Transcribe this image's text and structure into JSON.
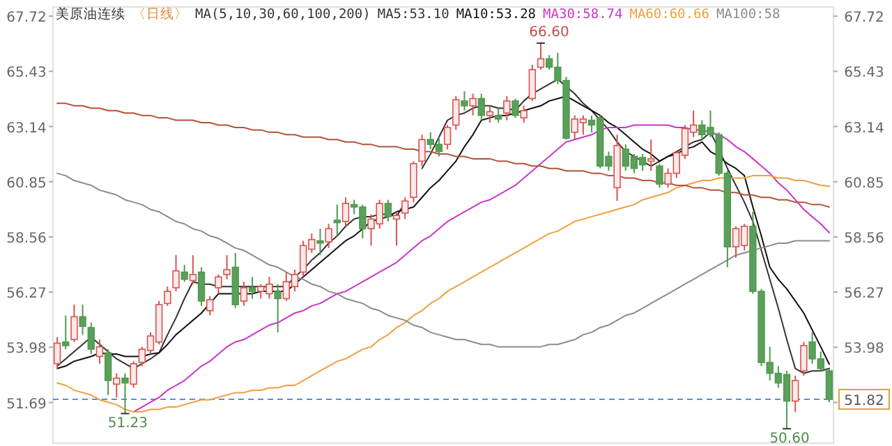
{
  "chart_data": {
    "type": "candlestick",
    "title": "美原油连续",
    "subtitle": "〈日线〉",
    "legend_title": "MA(5,10,30,60,100,200)",
    "legend": "top",
    "grid": false,
    "categories": [
      null,
      null,
      null,
      null,
      null,
      null,
      null,
      null,
      null,
      null,
      null,
      null,
      null,
      null,
      null,
      null,
      null,
      null,
      null,
      null,
      null,
      null,
      null,
      null,
      null,
      null,
      null,
      null,
      null,
      null,
      null,
      null,
      null,
      null,
      null,
      null,
      null,
      null,
      null,
      null,
      null,
      null,
      null,
      null,
      null,
      null,
      null,
      null,
      null,
      null,
      null,
      null,
      null,
      null,
      null,
      null,
      null,
      null,
      null,
      null,
      null,
      null,
      null,
      null,
      null,
      null,
      null,
      null,
      null,
      null,
      null,
      null,
      null,
      null,
      null,
      null,
      null,
      null,
      null,
      null,
      null,
      null,
      null,
      null,
      null,
      null,
      null,
      null,
      null,
      null,
      null,
      null
    ],
    "ohlc": [
      [
        53.3,
        54.4,
        53.1,
        54.15
      ],
      [
        54.2,
        55.3,
        53.9,
        54.05
      ],
      [
        54.3,
        55.75,
        54.2,
        55.25
      ],
      [
        55.25,
        55.75,
        54.5,
        54.85
      ],
      [
        54.8,
        55.0,
        53.7,
        53.9
      ],
      [
        53.6,
        54.3,
        53.3,
        54.0
      ],
      [
        53.75,
        53.9,
        52.0,
        52.6
      ],
      [
        52.45,
        52.9,
        51.9,
        52.7
      ],
      [
        52.7,
        52.9,
        51.23,
        52.5
      ],
      [
        52.45,
        53.4,
        52.3,
        53.3
      ],
      [
        53.35,
        54.0,
        53.2,
        53.9
      ],
      [
        53.85,
        54.6,
        53.7,
        54.45
      ],
      [
        54.2,
        55.9,
        54.1,
        55.75
      ],
      [
        55.8,
        56.5,
        55.7,
        56.3
      ],
      [
        56.45,
        57.8,
        56.3,
        57.15
      ],
      [
        57.1,
        57.4,
        56.7,
        56.8
      ],
      [
        56.75,
        57.8,
        56.6,
        57.0
      ],
      [
        57.1,
        57.3,
        55.7,
        55.9
      ],
      [
        55.5,
        56.1,
        55.3,
        55.95
      ],
      [
        56.45,
        57.0,
        56.2,
        56.9
      ],
      [
        57.0,
        57.8,
        56.8,
        57.2
      ],
      [
        57.3,
        57.9,
        55.6,
        55.75
      ],
      [
        55.9,
        56.7,
        55.7,
        56.45
      ],
      [
        56.45,
        56.9,
        56.0,
        56.3
      ],
      [
        56.3,
        56.6,
        56.0,
        56.5
      ],
      [
        56.2,
        56.9,
        56.0,
        56.6
      ],
      [
        56.3,
        56.6,
        54.6,
        56.0
      ],
      [
        56.0,
        57.1,
        55.9,
        56.7
      ],
      [
        56.5,
        57.2,
        56.3,
        57.0
      ],
      [
        57.1,
        58.4,
        56.9,
        58.2
      ],
      [
        58.05,
        58.7,
        57.9,
        58.45
      ],
      [
        58.4,
        58.9,
        57.8,
        58.3
      ],
      [
        58.35,
        59.1,
        58.1,
        58.9
      ],
      [
        59.25,
        59.9,
        58.6,
        59.15
      ],
      [
        59.2,
        60.2,
        59.0,
        59.95
      ],
      [
        59.9,
        60.1,
        59.5,
        59.8
      ],
      [
        59.8,
        59.9,
        58.5,
        58.9
      ],
      [
        58.9,
        59.5,
        58.2,
        59.3
      ],
      [
        59.1,
        60.1,
        58.9,
        59.95
      ],
      [
        59.95,
        60.1,
        59.2,
        59.4
      ],
      [
        59.3,
        59.6,
        58.2,
        59.45
      ],
      [
        59.55,
        60.2,
        59.3,
        60.05
      ],
      [
        60.2,
        61.7,
        60.0,
        61.6
      ],
      [
        61.7,
        62.8,
        61.5,
        62.6
      ],
      [
        62.6,
        62.9,
        62.2,
        62.4
      ],
      [
        62.4,
        62.7,
        61.9,
        62.1
      ],
      [
        62.4,
        63.2,
        62.2,
        63.1
      ],
      [
        63.2,
        64.4,
        63.0,
        64.25
      ],
      [
        64.2,
        64.6,
        63.8,
        64.0
      ],
      [
        64.0,
        64.5,
        63.6,
        64.3
      ],
      [
        64.3,
        64.5,
        63.4,
        63.6
      ],
      [
        63.6,
        64.0,
        63.3,
        63.75
      ],
      [
        63.6,
        63.9,
        63.3,
        63.45
      ],
      [
        63.7,
        64.4,
        63.4,
        64.2
      ],
      [
        64.2,
        64.3,
        63.5,
        63.6
      ],
      [
        63.5,
        64.0,
        63.3,
        63.8
      ],
      [
        64.3,
        65.7,
        64.2,
        65.5
      ],
      [
        65.6,
        66.6,
        65.5,
        65.95
      ],
      [
        65.95,
        66.1,
        65.5,
        65.6
      ],
      [
        65.6,
        66.2,
        64.9,
        65.05
      ],
      [
        65.05,
        65.2,
        62.6,
        62.65
      ],
      [
        62.9,
        63.6,
        62.6,
        63.45
      ],
      [
        63.3,
        63.6,
        62.8,
        63.45
      ],
      [
        63.4,
        63.6,
        62.9,
        63.2
      ],
      [
        63.5,
        63.6,
        61.4,
        61.5
      ],
      [
        61.9,
        62.1,
        61.3,
        61.5
      ],
      [
        60.6,
        62.8,
        60.05,
        62.35
      ],
      [
        62.2,
        62.4,
        61.3,
        61.5
      ],
      [
        61.9,
        62.0,
        61.2,
        61.4
      ],
      [
        61.85,
        62.0,
        61.3,
        61.55
      ],
      [
        61.7,
        62.6,
        61.3,
        61.8
      ],
      [
        61.5,
        61.6,
        60.6,
        60.75
      ],
      [
        60.75,
        61.4,
        60.6,
        61.2
      ],
      [
        61.2,
        62.1,
        61.0,
        62.05
      ],
      [
        61.95,
        63.2,
        61.8,
        63.05
      ],
      [
        62.9,
        63.8,
        62.7,
        63.2
      ],
      [
        63.2,
        63.4,
        62.6,
        62.8
      ],
      [
        63.1,
        63.8,
        62.7,
        62.8
      ],
      [
        62.8,
        62.9,
        61.1,
        61.2
      ],
      [
        61.2,
        61.3,
        57.3,
        58.15
      ],
      [
        58.15,
        59.0,
        57.7,
        58.9
      ],
      [
        58.2,
        59.1,
        58.0,
        59.0
      ],
      [
        59.0,
        59.6,
        56.2,
        56.3
      ],
      [
        56.3,
        56.4,
        53.2,
        53.35
      ],
      [
        53.35,
        54.0,
        52.6,
        52.9
      ],
      [
        52.9,
        53.2,
        52.3,
        52.5
      ],
      [
        52.85,
        53.0,
        50.6,
        51.75
      ],
      [
        51.75,
        52.8,
        51.3,
        52.6
      ],
      [
        53.0,
        54.2,
        52.8,
        54.05
      ],
      [
        54.2,
        54.6,
        53.3,
        53.5
      ],
      [
        53.5,
        53.8,
        53.0,
        53.1
      ],
      [
        53.0,
        53.1,
        51.7,
        51.82
      ]
    ],
    "series": [
      {
        "name": "MA5:53.10",
        "type": "line",
        "color": "#333333",
        "values": [
          53.2,
          53.5,
          53.8,
          54.1,
          54.4,
          54.1,
          53.8,
          53.5,
          53.3,
          53.1,
          53.3,
          53.5,
          53.75,
          54.5,
          55.2,
          56.0,
          56.7,
          56.6,
          56.6,
          56.5,
          56.5,
          56.5,
          56.5,
          56.5,
          56.5,
          56.5,
          56.5,
          56.5,
          56.9,
          57.2,
          57.6,
          57.9,
          58.3,
          58.6,
          59.0,
          59.3,
          59.4,
          59.4,
          59.5,
          59.5,
          59.4,
          60.0,
          null,
          61.4,
          62.0,
          62.7,
          63.4,
          63.6,
          63.7,
          63.9,
          64.0,
          64.0,
          63.9,
          63.9,
          63.8,
          64.2,
          64.5,
          64.7,
          64.9,
          65.1,
          64.8,
          64.5,
          64.1,
          63.8,
          63.4,
          63.0,
          62.5,
          62.1,
          61.9,
          61.7,
          61.5,
          61.7,
          61.9,
          62.1,
          62.3,
          62.5,
          62.6,
          62.9,
          62.2,
          61.4,
          60.7,
          60.0,
          59.2,
          58.0,
          56.8,
          55.6,
          54.3,
          53.1,
          52.9,
          53.0,
          53.0,
          53.1
        ]
      },
      {
        "name": "MA10:53.28",
        "type": "line",
        "color": "#111111",
        "values": [
          53.1,
          53.2,
          53.4,
          53.5,
          53.6,
          53.75,
          53.7,
          53.7,
          53.6,
          53.6,
          53.6,
          53.7,
          53.75,
          54.1,
          54.5,
          54.8,
          55.1,
          55.4,
          55.8,
          56.2,
          56.2,
          56.2,
          56.2,
          56.2,
          56.3,
          56.3,
          56.3,
          56.3,
          56.6,
          56.9,
          57.2,
          57.5,
          57.8,
          58.1,
          58.4,
          58.6,
          58.9,
          59.2,
          59.3,
          59.4,
          59.6,
          59.7,
          59.8,
          60.2,
          60.6,
          60.9,
          61.3,
          61.7,
          62.3,
          62.8,
          63.4,
          63.5,
          63.6,
          63.6,
          63.7,
          63.8,
          63.9,
          64.0,
          64.2,
          64.3,
          64.4,
          64.2,
          64.0,
          63.8,
          63.6,
          63.3,
          63.1,
          62.8,
          62.5,
          62.2,
          62.0,
          61.7,
          61.9,
          62.0,
          62.2,
          62.3,
          62.5,
          62.1,
          61.9,
          61.6,
          61.4,
          61.1,
          59.8,
          58.6,
          57.3,
          56.8,
          56.4,
          55.9,
          55.4,
          54.7,
          54.0,
          53.28
        ]
      },
      {
        "name": "MA30:58.74",
        "type": "line",
        "color": "#cc33cc",
        "values": [
          null,
          null,
          null,
          null,
          null,
          null,
          null,
          null,
          null,
          51.3,
          51.5,
          51.7,
          51.9,
          52.2,
          52.4,
          52.6,
          52.9,
          53.2,
          53.4,
          53.7,
          54.0,
          54.2,
          54.3,
          54.5,
          54.7,
          54.9,
          55.0,
          55.2,
          55.4,
          55.5,
          55.7,
          55.8,
          56.0,
          56.2,
          56.3,
          56.5,
          56.7,
          56.9,
          57.1,
          57.3,
          57.5,
          57.8,
          58.1,
          58.4,
          58.6,
          58.9,
          59.2,
          59.4,
          59.6,
          59.8,
          60.0,
          60.1,
          60.3,
          60.5,
          60.7,
          61.0,
          61.3,
          61.6,
          61.9,
          62.2,
          62.5,
          62.6,
          62.7,
          62.8,
          63.0,
          63.1,
          63.1,
          63.1,
          63.2,
          63.2,
          63.2,
          63.2,
          63.2,
          63.1,
          63.1,
          63.0,
          63.0,
          62.9,
          62.8,
          62.6,
          62.3,
          62.1,
          61.8,
          61.5,
          61.2,
          60.8,
          60.5,
          60.1,
          59.7,
          59.4,
          59.1,
          58.74
        ]
      },
      {
        "name": "MA60:60.66",
        "type": "line",
        "color": "#f0a040",
        "values": [
          52.5,
          52.4,
          52.2,
          52.1,
          52.0,
          51.8,
          51.7,
          51.6,
          51.4,
          51.3,
          51.3,
          51.4,
          51.4,
          51.5,
          51.5,
          51.6,
          51.7,
          51.8,
          51.8,
          51.9,
          52.0,
          52.1,
          52.1,
          52.2,
          52.2,
          52.3,
          52.3,
          52.4,
          52.4,
          52.6,
          52.8,
          53.0,
          53.2,
          53.4,
          53.5,
          53.7,
          53.9,
          54.0,
          54.3,
          54.5,
          54.8,
          55.0,
          55.3,
          55.5,
          55.8,
          56.0,
          56.3,
          56.5,
          56.7,
          56.9,
          57.1,
          57.3,
          57.5,
          57.7,
          57.9,
          58.1,
          58.3,
          58.5,
          58.7,
          58.8,
          59.0,
          59.2,
          59.3,
          59.4,
          59.5,
          59.6,
          59.7,
          59.8,
          59.9,
          60.1,
          60.2,
          60.3,
          60.4,
          60.6,
          60.7,
          60.8,
          60.9,
          60.9,
          61.0,
          61.0,
          61.0,
          61.0,
          61.1,
          61.1,
          61.1,
          61.0,
          61.0,
          60.9,
          60.9,
          60.8,
          60.7,
          60.66
        ]
      },
      {
        "name": "MA100:58",
        "type": "line",
        "color": "#8c8c8c",
        "values": [
          61.2,
          61.1,
          60.9,
          60.8,
          60.7,
          60.5,
          60.4,
          60.3,
          60.1,
          60.0,
          59.9,
          59.7,
          59.6,
          59.4,
          59.2,
          59.1,
          58.9,
          58.8,
          58.6,
          58.5,
          58.3,
          58.1,
          58.0,
          57.8,
          57.6,
          57.4,
          57.3,
          57.1,
          56.9,
          56.8,
          56.6,
          56.5,
          56.3,
          56.2,
          56.0,
          55.9,
          55.8,
          55.6,
          55.5,
          55.3,
          55.2,
          55.1,
          54.9,
          54.8,
          54.6,
          54.5,
          54.4,
          54.3,
          54.3,
          54.2,
          54.1,
          54.1,
          54.0,
          54.0,
          54.0,
          54.0,
          54.0,
          54.0,
          54.1,
          54.1,
          54.2,
          54.3,
          54.5,
          54.6,
          54.8,
          54.9,
          55.1,
          55.3,
          55.4,
          55.6,
          55.8,
          56.0,
          56.2,
          56.4,
          56.6,
          56.8,
          57.0,
          57.2,
          57.4,
          57.6,
          57.8,
          57.9,
          58.0,
          58.1,
          58.2,
          58.3,
          58.3,
          58.4,
          58.4,
          58.4,
          58.4,
          58.4
        ]
      },
      {
        "type": "line",
        "color": "#b5523b",
        "values": [
          64.1,
          64.1,
          64.0,
          64.0,
          63.9,
          63.9,
          63.8,
          63.8,
          63.7,
          63.7,
          63.6,
          63.6,
          63.5,
          63.5,
          63.4,
          63.4,
          63.4,
          63.3,
          63.3,
          63.2,
          63.2,
          63.1,
          63.1,
          63.0,
          63.0,
          62.9,
          62.9,
          62.8,
          62.8,
          62.7,
          62.7,
          62.7,
          62.6,
          62.6,
          62.5,
          62.5,
          62.4,
          62.4,
          62.3,
          62.3,
          62.3,
          62.2,
          62.2,
          62.1,
          62.1,
          62.0,
          62.0,
          61.9,
          61.9,
          61.8,
          61.8,
          61.8,
          61.7,
          61.7,
          61.6,
          61.6,
          61.5,
          61.5,
          61.4,
          61.4,
          61.3,
          61.3,
          61.3,
          61.2,
          61.2,
          61.1,
          61.1,
          61.0,
          61.0,
          60.9,
          60.9,
          60.8,
          60.8,
          60.7,
          60.7,
          60.6,
          60.6,
          60.5,
          60.5,
          60.4,
          60.4,
          60.3,
          60.3,
          60.2,
          60.2,
          60.1,
          60.1,
          60.0,
          60.0,
          59.9,
          59.9,
          59.8
        ]
      }
    ],
    "ylim": [
      50.0,
      68.1
    ],
    "yticks": [
      51.69,
      53.98,
      56.27,
      58.56,
      60.85,
      63.14,
      65.43,
      67.72
    ],
    "y2lim": [
      50.0,
      68.1
    ],
    "y2ticks": [
      {
        "value": 51.69,
        "label": null
      },
      53.98,
      56.27,
      58.56,
      60.85,
      63.14,
      65.43,
      67.72
    ],
    "ref_lines": [
      {
        "axis": "y2",
        "value": 51.82,
        "label": "51.82",
        "color": "#5b8fd0",
        "line_style": "dashed"
      }
    ],
    "annotations": [
      "66.60",
      {
        "text": "51.23",
        "y": 51.23
      },
      {
        "text": "50.60",
        "y": 50.6
      }
    ]
  }
}
